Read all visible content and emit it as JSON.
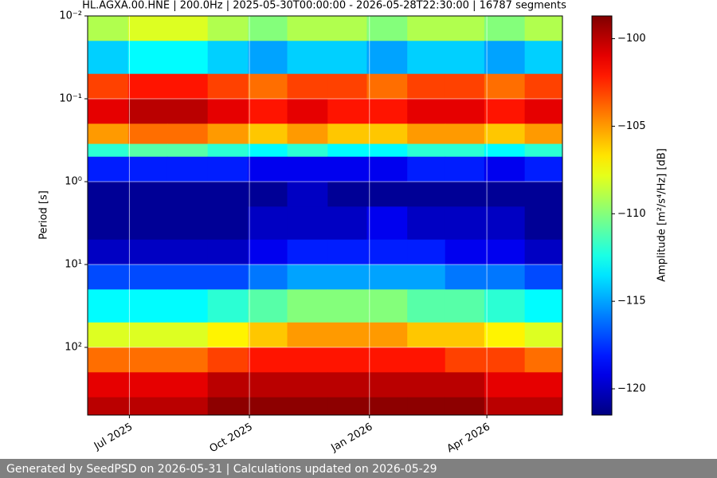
{
  "chart_data": {
    "type": "heatmap",
    "title": "HL.AGXA.00.HNE | 200.0Hz | 2025-05-30T00:00:00 - 2026-05-28T22:30:00 | 16787 segments",
    "ylabel": "Period [s]",
    "colorbar_label": "Amplitude [m²/s⁴/Hz] [dB]",
    "footer": "Generated by SeedPSD on 2026-05-31 | Calculations updated on 2026-05-29",
    "xlim": [
      "2025-05-30T00:00:00",
      "2026-05-28T22:30:00"
    ],
    "xbins": [
      "2025-05-30T00:00:00",
      "2025-06-30",
      "2025-07-30",
      "2025-08-30",
      "2025-09-30",
      "2025-10-30",
      "2025-11-30",
      "2025-12-30",
      "2026-01-30",
      "2026-02-28",
      "2026-03-30",
      "2026-04-30",
      "2026-05-28T22:30:00"
    ],
    "xticks": [
      {
        "value": "2025-07-01",
        "label": "Jul 2025"
      },
      {
        "value": "2025-10-01",
        "label": "Oct 2025"
      },
      {
        "value": "2026-01-01",
        "label": "Jan 2026"
      },
      {
        "value": "2026-04-01",
        "label": "Apr 2026"
      }
    ],
    "yscale": "log",
    "yinverted": true,
    "ylim": [
      0.01,
      656
    ],
    "yticks": [
      {
        "value": 0.01,
        "label": "10⁻²"
      },
      {
        "value": 0.1,
        "label": "10⁻¹"
      },
      {
        "value": 1,
        "label": "10⁰"
      },
      {
        "value": 10,
        "label": "10¹"
      },
      {
        "value": 100,
        "label": "10²"
      }
    ],
    "ybins": [
      0.01,
      0.02,
      0.05,
      0.1,
      0.2,
      0.35,
      0.5,
      1,
      2,
      5,
      10,
      20,
      50,
      100,
      200,
      400,
      656
    ],
    "values": [
      [
        -109,
        -108,
        -108,
        -109,
        -110,
        -109,
        -109,
        -110,
        -109,
        -109,
        -110,
        -109
      ],
      [
        -114,
        -113,
        -113,
        -114,
        -115,
        -114,
        -114,
        -115,
        -114,
        -114,
        -115,
        -114
      ],
      [
        -103,
        -102,
        -102,
        -103,
        -104,
        -103,
        -103,
        -104,
        -103,
        -103,
        -104,
        -103
      ],
      [
        -101,
        -100,
        -100,
        -101,
        -102,
        -101,
        -102,
        -102,
        -101,
        -101,
        -102,
        -101
      ],
      [
        -105,
        -104,
        -104,
        -105,
        -106,
        -105,
        -106,
        -106,
        -105,
        -105,
        -106,
        -105
      ],
      [
        -112,
        -111,
        -111,
        -112,
        -113,
        -112,
        -113,
        -113,
        -112,
        -112,
        -113,
        -112
      ],
      [
        -118,
        -118,
        -118,
        -118,
        -119,
        -119,
        -119,
        -119,
        -118,
        -118,
        -119,
        -118
      ],
      [
        -121,
        -121,
        -121,
        -121,
        -121,
        -120,
        -121,
        -121,
        -121,
        -121,
        -121,
        -121
      ],
      [
        -121,
        -121,
        -121,
        -121,
        -120,
        -120,
        -120,
        -119,
        -120,
        -120,
        -120,
        -121
      ],
      [
        -120,
        -120,
        -120,
        -120,
        -119,
        -118,
        -118,
        -118,
        -118,
        -119,
        -119,
        -120
      ],
      [
        -117,
        -117,
        -117,
        -117,
        -116,
        -115,
        -115,
        -115,
        -115,
        -116,
        -116,
        -117
      ],
      [
        -113,
        -113,
        -113,
        -112,
        -111,
        -110,
        -110,
        -110,
        -111,
        -111,
        -112,
        -113
      ],
      [
        -108,
        -108,
        -108,
        -107,
        -106,
        -105,
        -105,
        -105,
        -106,
        -106,
        -107,
        -108
      ],
      [
        -104,
        -104,
        -104,
        -103,
        -102,
        -102,
        -102,
        -102,
        -102,
        -103,
        -103,
        -104
      ],
      [
        -101,
        -101,
        -101,
        -100,
        -100,
        -100,
        -100,
        -100,
        -100,
        -100,
        -101,
        -101
      ],
      [
        -100,
        -100,
        -100,
        -99,
        -99,
        -99,
        -99,
        -99,
        -99,
        -99,
        -100,
        -100
      ]
    ],
    "clim": [
      -121.5,
      -98.7
    ],
    "cticks": [
      {
        "value": -100,
        "label": "−100"
      },
      {
        "value": -105,
        "label": "−105"
      },
      {
        "value": -110,
        "label": "−110"
      },
      {
        "value": -115,
        "label": "−115"
      },
      {
        "value": -120,
        "label": "−120"
      }
    ],
    "colormap": "jet",
    "grid": true
  }
}
